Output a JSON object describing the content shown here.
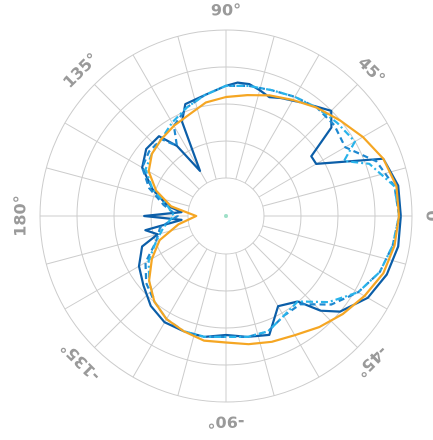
{
  "chart_data": {
    "type": "polar-line",
    "r_range": [
      0,
      1
    ],
    "grid": true,
    "angle_labels": [
      {
        "angle": 0,
        "text": "0"
      },
      {
        "angle": 45,
        "text": "45°"
      },
      {
        "angle": 90,
        "text": "90°"
      },
      {
        "angle": 135,
        "text": "135°"
      },
      {
        "angle": 180,
        "text": "180°"
      },
      {
        "angle": -135,
        "text": "-135°"
      },
      {
        "angle": -90,
        "text": "-90°"
      },
      {
        "angle": -45,
        "text": "-45°"
      }
    ],
    "colors": {
      "grid": "#cccccc",
      "labels": "#9a9a9a",
      "dark_blue": "#0b5ea8",
      "mid_blue": "#1e88d0",
      "light_blue": "#29b3ea",
      "orange": "#f5a623",
      "center_marker": "#9fe0c8"
    },
    "series": [
      {
        "color": "#0b5ea8",
        "style": "solid",
        "theta": [
          0,
          10,
          20,
          30,
          35,
          40,
          45,
          55,
          65,
          70,
          75,
          80,
          85,
          90,
          100,
          110,
          115,
          120,
          125,
          130,
          140,
          150,
          160,
          170,
          175,
          180,
          185,
          190,
          195,
          200,
          210,
          220,
          230,
          240,
          250,
          260,
          270,
          280,
          290,
          300,
          310,
          315,
          320,
          330,
          340,
          350,
          360
        ],
        "r": [
          0.94,
          0.94,
          0.9,
          0.56,
          0.56,
          0.74,
          0.8,
          0.74,
          0.7,
          0.68,
          0.7,
          0.72,
          0.72,
          0.7,
          0.66,
          0.64,
          0.56,
          0.28,
          0.46,
          0.56,
          0.56,
          0.52,
          0.42,
          0.32,
          0.24,
          0.44,
          0.24,
          0.44,
          0.38,
          0.48,
          0.54,
          0.58,
          0.63,
          0.66,
          0.66,
          0.66,
          0.64,
          0.66,
          0.68,
          0.56,
          0.6,
          0.72,
          0.8,
          0.88,
          0.92,
          0.94,
          0.94
        ]
      },
      {
        "color": "#1e88d0",
        "style": "dashed",
        "theta": [
          0,
          10,
          20,
          30,
          40,
          50,
          60,
          70,
          80,
          90,
          100,
          110,
          120,
          125,
          130,
          140,
          150,
          160,
          170,
          180,
          190,
          200,
          210,
          220,
          230,
          240,
          250,
          260,
          270,
          280,
          290,
          300,
          310,
          320,
          330,
          340,
          350,
          360
        ],
        "r": [
          0.93,
          0.92,
          0.86,
          0.74,
          0.76,
          0.76,
          0.74,
          0.72,
          0.71,
          0.7,
          0.66,
          0.62,
          0.56,
          0.46,
          0.54,
          0.54,
          0.52,
          0.44,
          0.34,
          0.26,
          0.36,
          0.4,
          0.5,
          0.56,
          0.6,
          0.64,
          0.66,
          0.66,
          0.65,
          0.66,
          0.66,
          0.62,
          0.62,
          0.74,
          0.82,
          0.88,
          0.91,
          0.93
        ]
      },
      {
        "color": "#29b3ea",
        "style": "dashdot",
        "theta": [
          0,
          10,
          20,
          25,
          30,
          40,
          50,
          60,
          70,
          80,
          90,
          100,
          110,
          120,
          130,
          140,
          150,
          160,
          170,
          180,
          190,
          200,
          210,
          220,
          230,
          240,
          250,
          260,
          270,
          280,
          290,
          300,
          310,
          320,
          330,
          340,
          350,
          360
        ],
        "r": [
          0.93,
          0.92,
          0.82,
          0.7,
          0.8,
          0.78,
          0.76,
          0.74,
          0.72,
          0.71,
          0.7,
          0.66,
          0.62,
          0.58,
          0.54,
          0.52,
          0.5,
          0.42,
          0.32,
          0.28,
          0.34,
          0.4,
          0.48,
          0.54,
          0.6,
          0.64,
          0.66,
          0.66,
          0.65,
          0.66,
          0.66,
          0.62,
          0.6,
          0.72,
          0.82,
          0.88,
          0.91,
          0.93
        ]
      },
      {
        "color": "#f5a623",
        "style": "solid",
        "theta": [
          0,
          10,
          20,
          30,
          40,
          50,
          60,
          70,
          80,
          90,
          100,
          110,
          120,
          130,
          140,
          150,
          160,
          170,
          180,
          190,
          200,
          210,
          220,
          230,
          240,
          250,
          260,
          270,
          280,
          290,
          300,
          310,
          320,
          330,
          340,
          350,
          360
        ],
        "r": [
          0.93,
          0.93,
          0.9,
          0.85,
          0.8,
          0.76,
          0.72,
          0.69,
          0.66,
          0.64,
          0.62,
          0.58,
          0.56,
          0.54,
          0.52,
          0.48,
          0.4,
          0.3,
          0.16,
          0.26,
          0.38,
          0.46,
          0.54,
          0.6,
          0.64,
          0.66,
          0.68,
          0.68,
          0.7,
          0.72,
          0.74,
          0.78,
          0.82,
          0.86,
          0.9,
          0.92,
          0.93
        ]
      }
    ]
  }
}
